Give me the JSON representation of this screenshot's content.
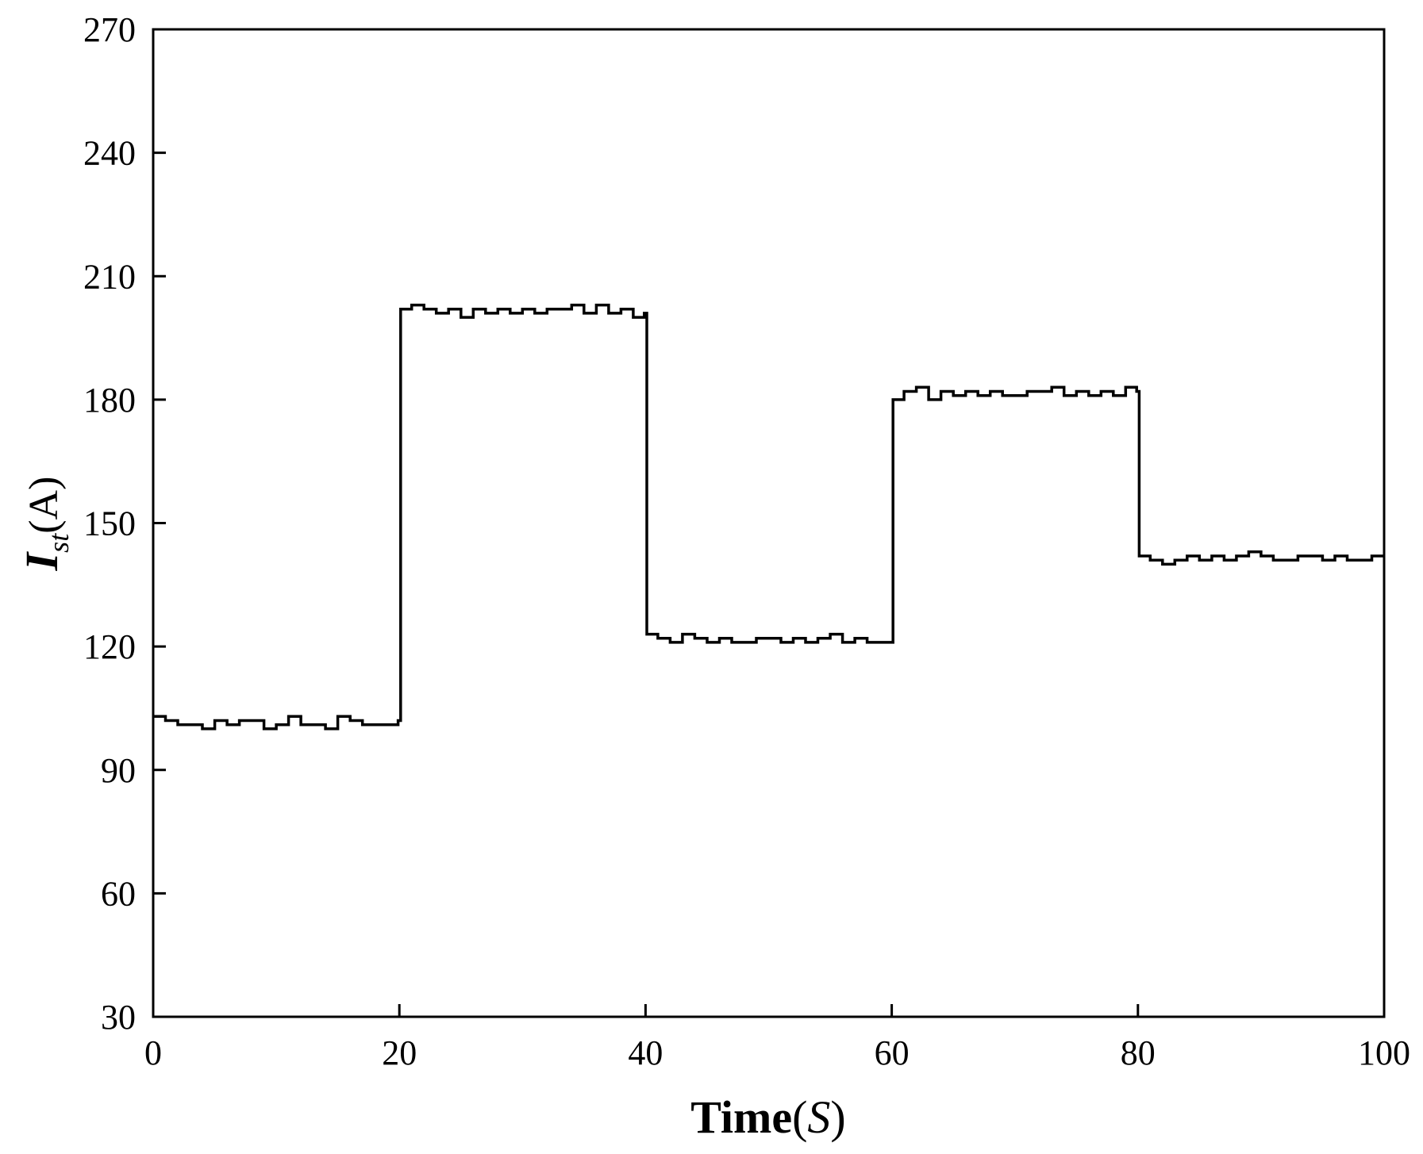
{
  "chart_data": {
    "type": "line",
    "title": "",
    "xlabel": {
      "main": "Time",
      "paren_open": "(",
      "unit": "S",
      "paren_close": ")"
    },
    "ylabel": {
      "main": "I",
      "subscript": "st",
      "unit": "(A)"
    },
    "xlim": [
      0,
      100
    ],
    "ylim": [
      30,
      270
    ],
    "xticks": [
      0,
      20,
      40,
      60,
      80,
      100
    ],
    "xtick_labels": [
      "0",
      "20",
      "40",
      "60",
      "80",
      "100"
    ],
    "yticks": [
      30,
      60,
      90,
      120,
      150,
      180,
      210,
      240,
      270
    ],
    "ytick_labels": [
      "30",
      "60",
      "90",
      "120",
      "150",
      "180",
      "210",
      "240",
      "270"
    ],
    "grid": false,
    "legend": "none",
    "line_color": "#000000",
    "series": [
      {
        "x": [
          0,
          1,
          2,
          3,
          4,
          5,
          6,
          7,
          8,
          9,
          10,
          11,
          12,
          13,
          14,
          15,
          16,
          17,
          18,
          19,
          19.9,
          20.1,
          21,
          22,
          23,
          24,
          25,
          26,
          27,
          28,
          29,
          30,
          31,
          32,
          33,
          34,
          35,
          36,
          37,
          38,
          39,
          39.9,
          40.1,
          41,
          42,
          43,
          44,
          45,
          46,
          47,
          48,
          49,
          50,
          51,
          52,
          53,
          54,
          55,
          56,
          57,
          58,
          59,
          59.9,
          60.1,
          61,
          62,
          63,
          64,
          65,
          66,
          67,
          68,
          69,
          70,
          71,
          72,
          73,
          74,
          75,
          76,
          77,
          78,
          79,
          79.9,
          80.1,
          81,
          82,
          83,
          84,
          85,
          86,
          87,
          88,
          89,
          90,
          91,
          92,
          93,
          94,
          95,
          96,
          97,
          98,
          99,
          100
        ],
        "y": [
          103,
          102,
          101,
          101,
          100,
          102,
          101,
          102,
          102,
          100,
          101,
          103,
          101,
          101,
          100,
          103,
          102,
          101,
          101,
          101,
          102,
          202,
          203,
          202,
          201,
          202,
          200,
          202,
          201,
          202,
          201,
          202,
          201,
          202,
          202,
          203,
          201,
          203,
          201,
          202,
          200,
          201,
          123,
          122,
          121,
          123,
          122,
          121,
          122,
          121,
          121,
          122,
          122,
          121,
          122,
          121,
          122,
          123,
          121,
          122,
          121,
          121,
          121,
          180,
          182,
          183,
          180,
          182,
          181,
          182,
          181,
          182,
          181,
          181,
          182,
          182,
          183,
          181,
          182,
          181,
          182,
          181,
          183,
          182,
          142,
          141,
          140,
          141,
          142,
          141,
          142,
          141,
          142,
          143,
          142,
          141,
          141,
          142,
          142,
          141,
          142,
          141,
          141,
          142,
          142
        ]
      }
    ]
  }
}
